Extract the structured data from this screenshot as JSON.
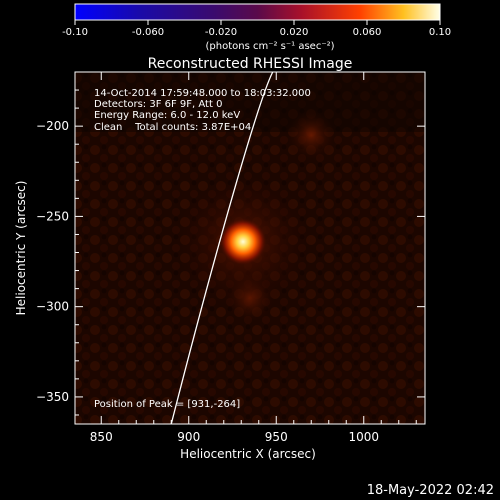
{
  "chart_data": {
    "type": "heatmap",
    "title": "Reconstructed RHESSI Image",
    "xlabel": "Heliocentric X (arcsec)",
    "ylabel": "Heliocentric Y (arcsec)",
    "xlim": [
      835,
      1035
    ],
    "ylim": [
      -365,
      -170
    ],
    "xticks": [
      850,
      900,
      950,
      1000
    ],
    "yticks": [
      -200,
      -250,
      -300,
      -350
    ],
    "colorbar": {
      "range": [
        -0.1,
        0.1
      ],
      "ticks": [
        "-0.10",
        "-0.060",
        "-0.020",
        "0.020",
        "0.060",
        "0.10"
      ],
      "unit_label": "(photons cm⁻² s⁻¹ asec⁻²)"
    },
    "peak": {
      "x": 931,
      "y": -264,
      "value": 0.1
    },
    "secondary_sources": [
      {
        "x": 970,
        "y": -205,
        "value": 0.03
      },
      {
        "x": 935,
        "y": -295,
        "value": 0.03
      }
    ],
    "limb_curve": [
      [
        890,
        -365
      ],
      [
        915,
        -270
      ],
      [
        940,
        -185
      ],
      [
        948,
        -170
      ]
    ],
    "annotations": [
      "14-Oct-2014 17:59:48.000 to 18:03:32.000",
      "Detectors: 3F 6F 9F, Att 0",
      "Energy Range: 6.0 - 12.0 keV",
      "Clean    Total counts: 3.87E+04"
    ],
    "peak_label": "Position of Peak = [931,-264]"
  },
  "footer_timestamp": "18-May-2022 02:42",
  "colors": {
    "background": "#000000",
    "frame": "#ffffff"
  }
}
